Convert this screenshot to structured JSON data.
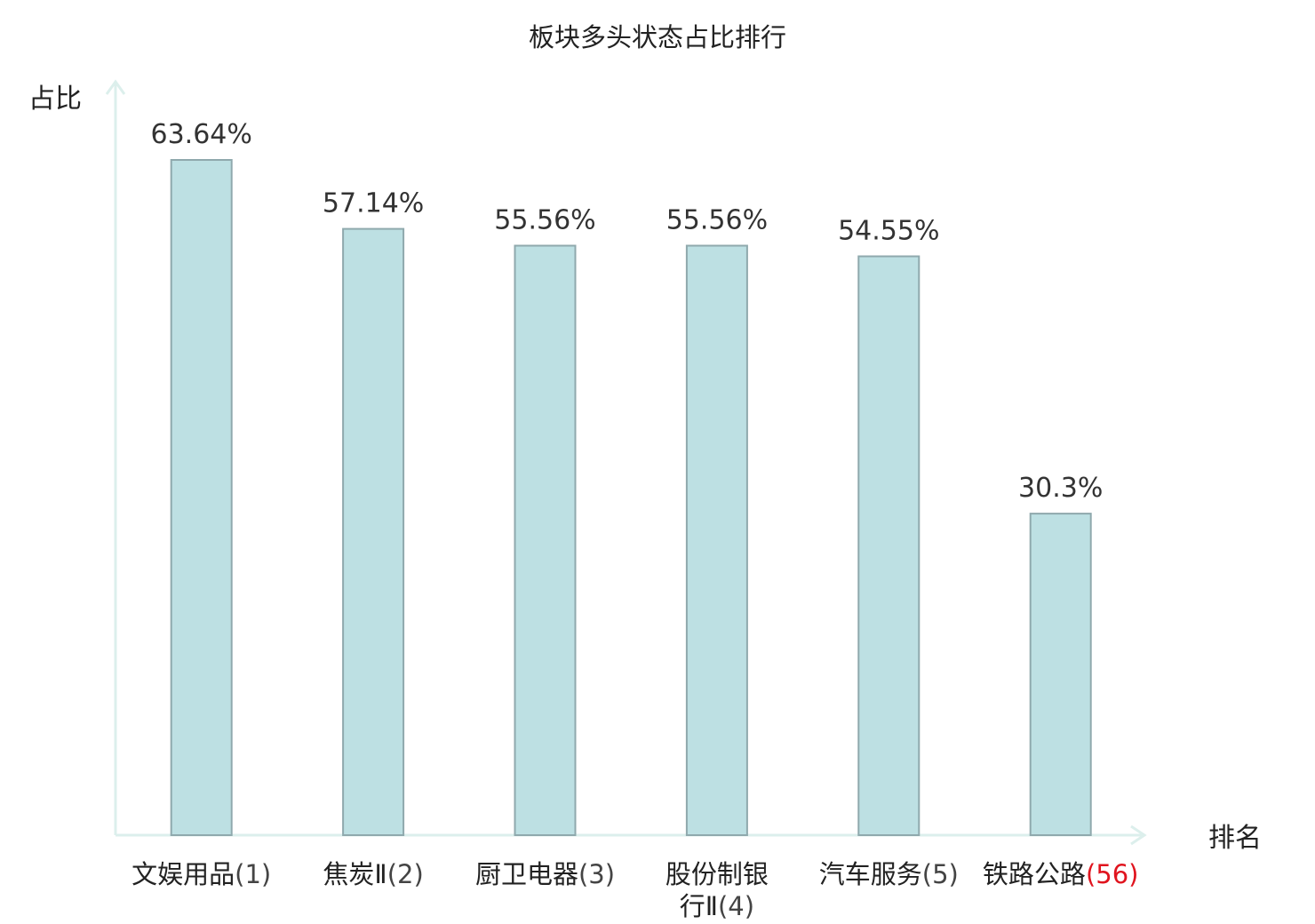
{
  "chart_data": {
    "type": "bar",
    "title": "板块多头状态占比排行",
    "xlabel": "排名",
    "ylabel": "占比",
    "ylim": [
      0,
      70
    ],
    "grid": false,
    "legend": "none",
    "categories": [
      {
        "name": [
          "文娱用品"
        ],
        "rank": "(1)",
        "highlight": false
      },
      {
        "name": [
          "焦炭Ⅱ"
        ],
        "rank": "(2)",
        "highlight": false
      },
      {
        "name": [
          "厨卫电器"
        ],
        "rank": "(3)",
        "highlight": false
      },
      {
        "name": [
          "股份制银",
          "行Ⅱ"
        ],
        "rank": "(4)",
        "highlight": false
      },
      {
        "name": [
          "汽车服务"
        ],
        "rank": "(5)",
        "highlight": false
      },
      {
        "name": [
          "铁路公路"
        ],
        "rank": "(56)",
        "highlight": true
      }
    ],
    "values": [
      63.64,
      57.14,
      55.56,
      55.56,
      54.55,
      30.3
    ],
    "value_labels": [
      "63.64%",
      "57.14%",
      "55.56%",
      "55.56%",
      "54.55%",
      "30.3%"
    ],
    "colors": {
      "bar_fill": "#bde0e3",
      "bar_stroke": "#8fa9ad",
      "axis": "#dcefec",
      "highlight_text": "#e0141e",
      "text": "#222222",
      "value_text": "#333333"
    }
  }
}
